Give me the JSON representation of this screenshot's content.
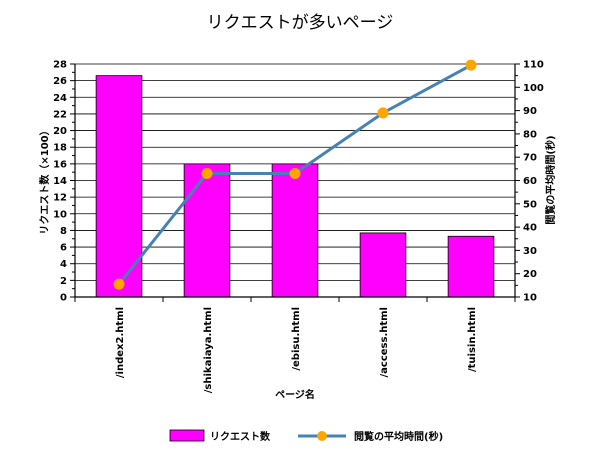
{
  "chart_data": {
    "type": "bar",
    "title": "リクエストが多いページ",
    "xlabel": "ページ名",
    "ylabel": "リクエスト数（×100）",
    "y2label": "閲覧の平均時間(秒)",
    "categories": [
      "/index2.html",
      "/shikaiaya.html",
      "/ebisu.html",
      "/access.html",
      "/tuisin.html"
    ],
    "ylim": [
      0,
      28
    ],
    "yticks": [
      0,
      2,
      4,
      6,
      8,
      10,
      12,
      14,
      16,
      18,
      20,
      22,
      24,
      26,
      28
    ],
    "y2lim": [
      10,
      110
    ],
    "y2ticks": [
      10,
      20,
      30,
      40,
      50,
      60,
      70,
      80,
      90,
      100,
      110
    ],
    "grid": true,
    "legend_position": "bottom",
    "series": [
      {
        "name": "リクエスト数",
        "type": "bar",
        "axis": "left",
        "color": "#ff00ff",
        "values": [
          26.6,
          16.0,
          16.0,
          7.7,
          7.3
        ]
      },
      {
        "name": "閲覧の平均時間(秒)",
        "type": "line",
        "axis": "right",
        "color": "#4682b4",
        "marker_color": "#ffa500",
        "values": [
          15.5,
          63.0,
          63.0,
          89.0,
          109.5
        ]
      }
    ]
  }
}
